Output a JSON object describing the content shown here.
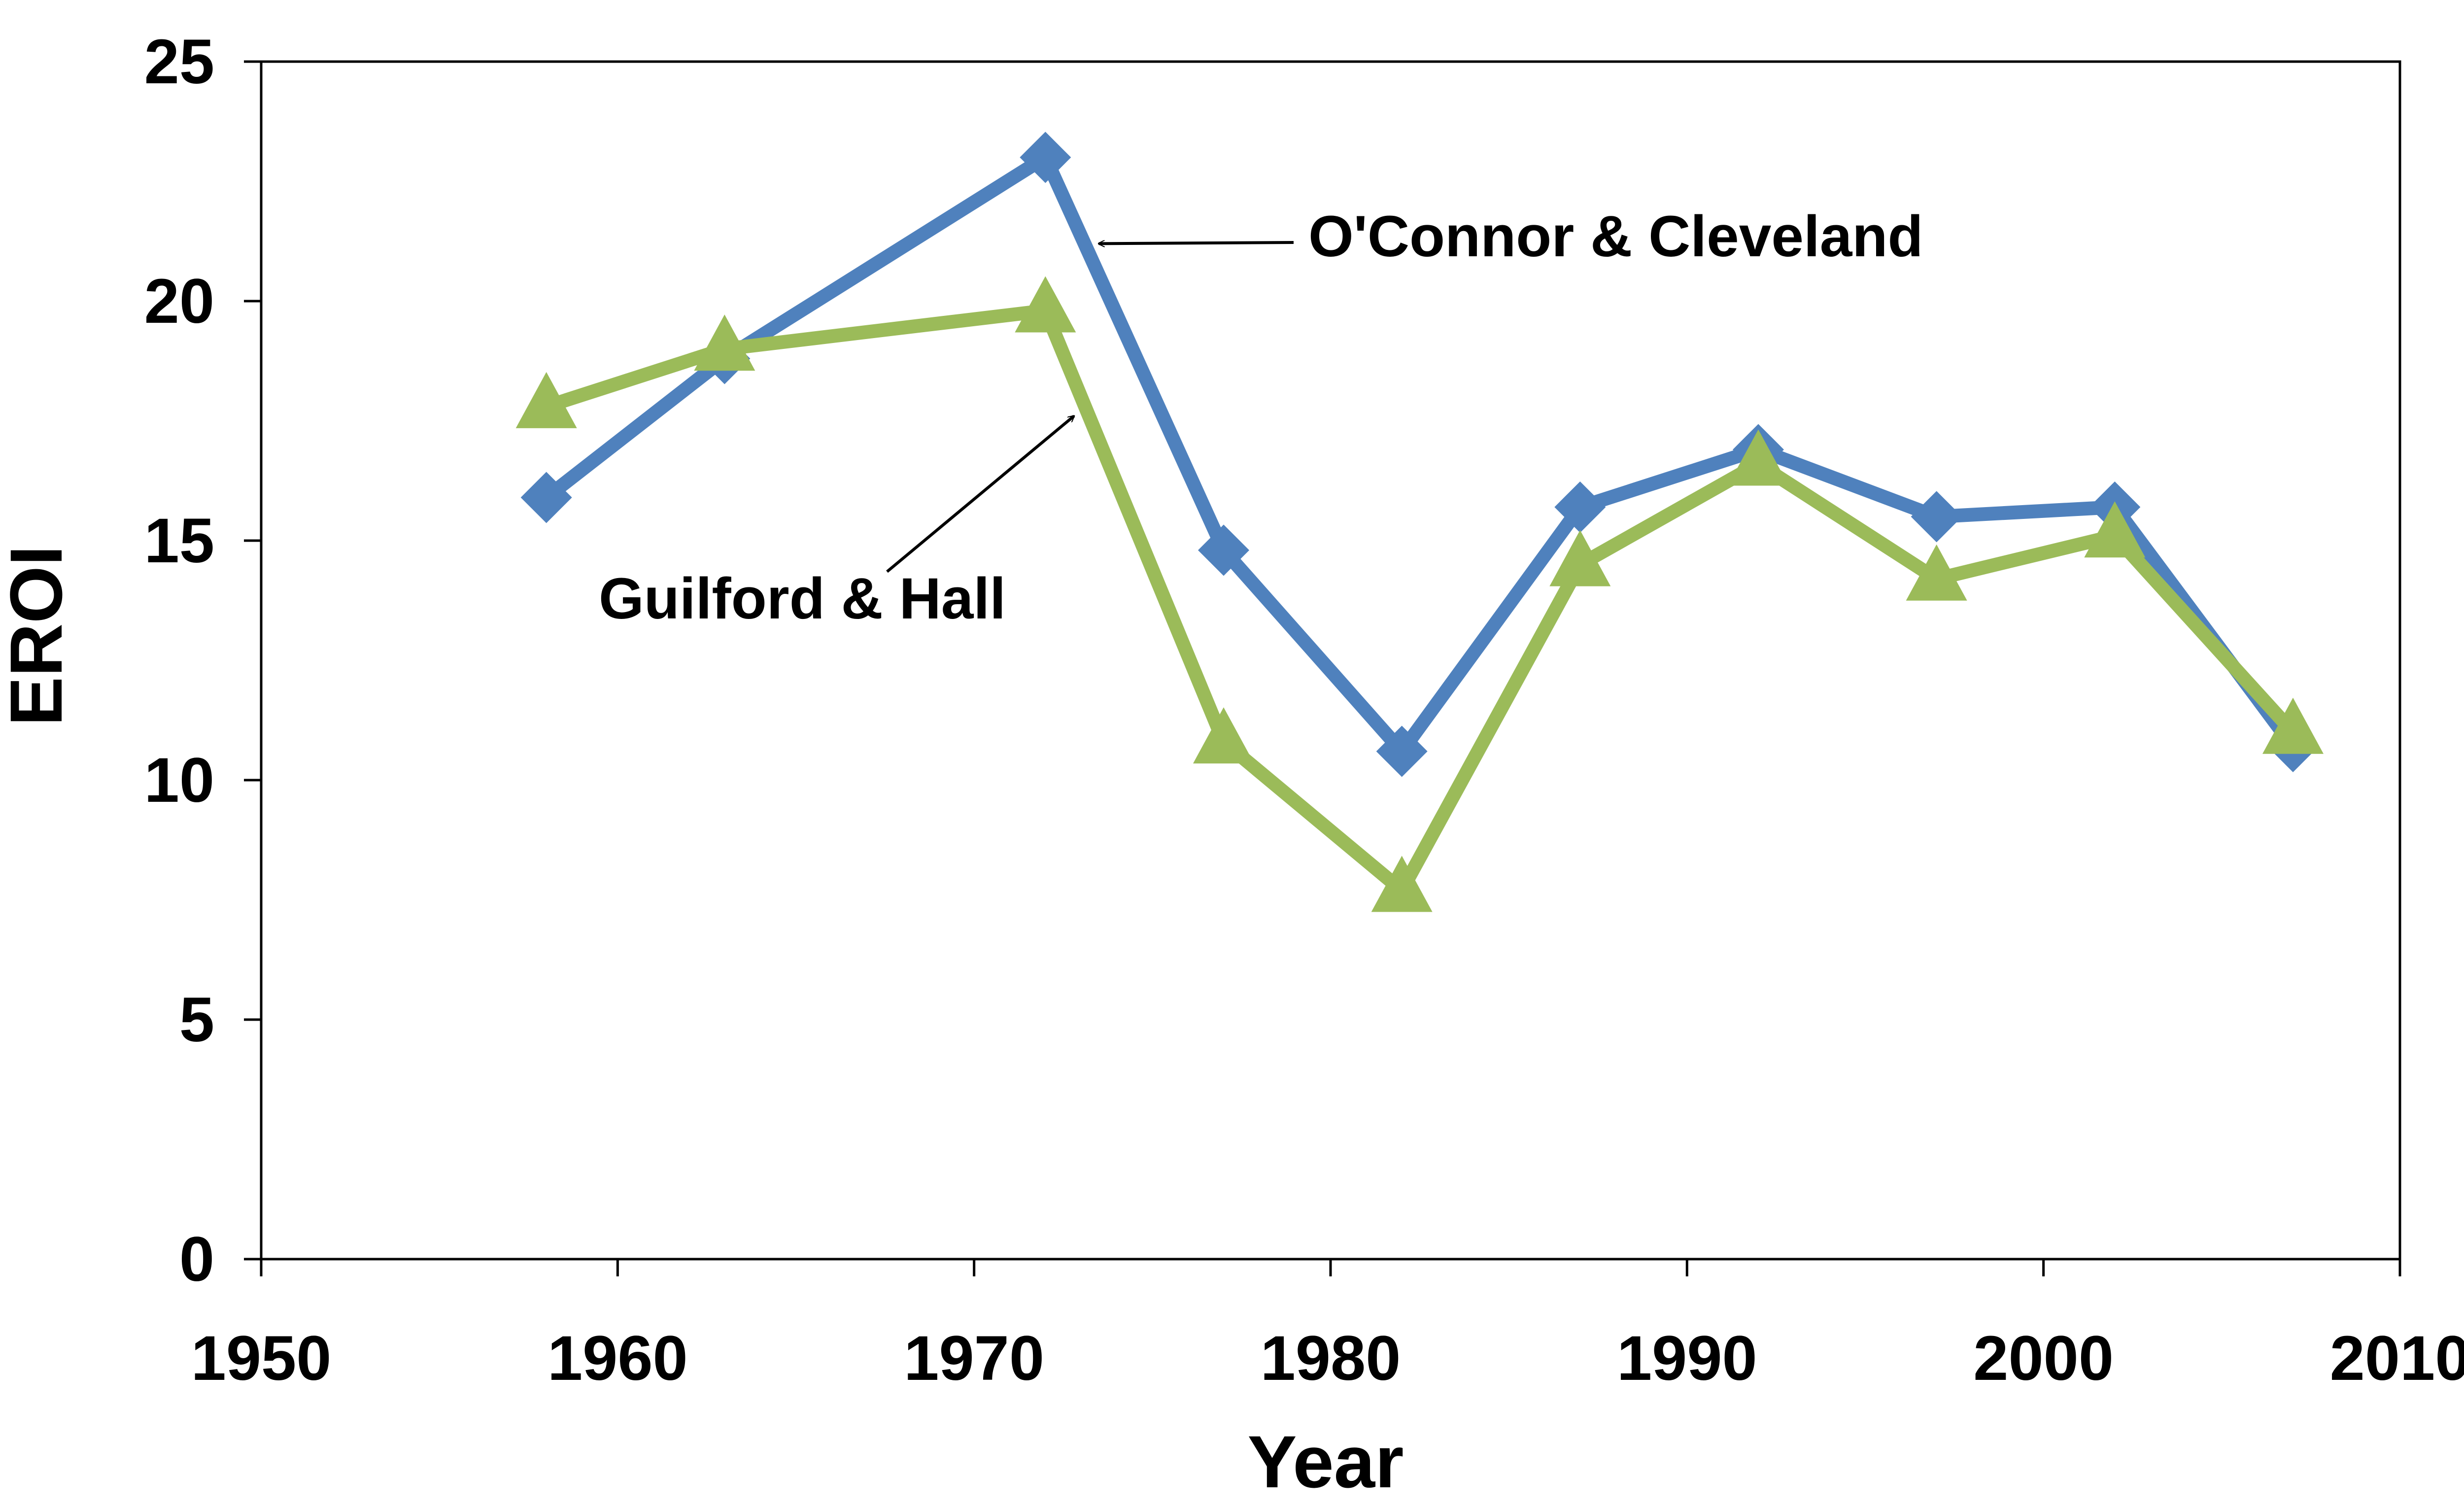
{
  "chart_data": {
    "type": "line",
    "title": "",
    "xlabel": "Year",
    "ylabel": "EROI",
    "xlim": [
      1950,
      2010
    ],
    "ylim": [
      0,
      25
    ],
    "xticks": [
      1950,
      1960,
      1970,
      1980,
      1990,
      2000,
      2010
    ],
    "yticks": [
      0,
      5,
      10,
      15,
      20,
      25
    ],
    "grid": false,
    "legend": "none",
    "series": [
      {
        "name": "O'Connor & Cleveland",
        "color": "#4f81bd",
        "marker": "diamond",
        "x": [
          1958,
          1963,
          1972,
          1977,
          1982,
          1987,
          1992,
          1997,
          2002,
          2007
        ],
        "y": [
          15.9,
          18.8,
          23.0,
          14.8,
          10.6,
          15.7,
          16.9,
          15.5,
          15.7,
          10.7
        ]
      },
      {
        "name": "Guilford & Hall",
        "color": "#9bbb59",
        "marker": "triangle",
        "x": [
          1958,
          1963,
          1972,
          1977,
          1982,
          1987,
          1992,
          1997,
          2002,
          2007
        ],
        "y": [
          17.8,
          19.0,
          19.8,
          10.8,
          7.7,
          14.5,
          16.6,
          14.2,
          15.1,
          11.0
        ]
      }
    ],
    "annotations": [
      {
        "text": "O'Connor & Cleveland",
        "series": "O'Connor & Cleveland",
        "points_to": [
          1973.5,
          21.2
        ]
      },
      {
        "text": "Guilford & Hall",
        "series": "Guilford & Hall",
        "points_to": [
          1972.8,
          17.6
        ]
      }
    ]
  }
}
